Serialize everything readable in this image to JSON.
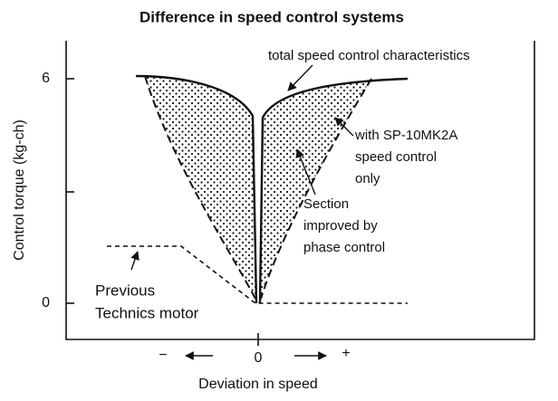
{
  "title": "Difference in speed control systems",
  "y_axis_label": "Control torque (kg-ch)",
  "x_axis_label": "Deviation in speed",
  "y_tick_labels": [
    "6",
    "0"
  ],
  "x_tick_labels": [
    "−",
    "0",
    "+"
  ],
  "annotations": {
    "total": "total speed control characteristics",
    "sp10": [
      "with SP-10MK2A",
      "speed control",
      "only"
    ],
    "section": [
      "Section",
      "improved by",
      "phase control"
    ],
    "previous": [
      "Previous",
      "Technics motor"
    ]
  }
}
